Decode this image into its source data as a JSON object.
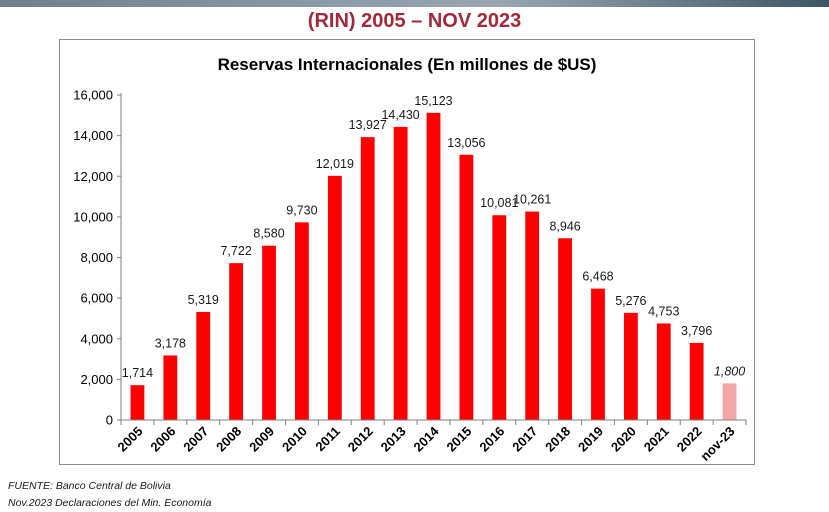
{
  "slide": {
    "title": "(RIN) 2005 – NOV 2023"
  },
  "footnotes": {
    "source": "FUENTE: Banco Central de Bolivia",
    "note": "Nov.2023 Declaraciones del Min. Economía"
  },
  "colors": {
    "title": "#a3293a",
    "bar": "#ff0000",
    "bar_estimate": "#f4a6a6"
  },
  "chart_data": {
    "type": "bar",
    "title": "Reservas Internacionales (En millones de $US)",
    "xlabel": "",
    "ylabel": "",
    "ylim": [
      0,
      16000
    ],
    "yticks": [
      0,
      2000,
      4000,
      6000,
      8000,
      10000,
      12000,
      14000,
      16000
    ],
    "ytick_labels": [
      "0",
      "2,000",
      "4,000",
      "6,000",
      "8,000",
      "10,000",
      "12,000",
      "14,000",
      "16,000"
    ],
    "grid": false,
    "legend": "none",
    "categories": [
      "2005",
      "2006",
      "2007",
      "2008",
      "2009",
      "2010",
      "2011",
      "2012",
      "2013",
      "2014",
      "2015",
      "2016",
      "2017",
      "2018",
      "2019",
      "2020",
      "2021",
      "2022",
      "nov-23"
    ],
    "values": [
      1714,
      3178,
      5319,
      7722,
      8580,
      9730,
      12019,
      13927,
      14430,
      15123,
      13056,
      10081,
      10261,
      8946,
      6468,
      5276,
      4753,
      3796,
      1800
    ],
    "value_labels": [
      "1,714",
      "3,178",
      "5,319",
      "7,722",
      "8,580",
      "9,730",
      "12,019",
      "13,927",
      "14,430",
      "15,123",
      "13,056",
      "10,081",
      "10,261",
      "8,946",
      "6,468",
      "5,276",
      "4,753",
      "3,796",
      "1,800"
    ],
    "estimated": [
      false,
      false,
      false,
      false,
      false,
      false,
      false,
      false,
      false,
      false,
      false,
      false,
      false,
      false,
      false,
      false,
      false,
      false,
      true
    ]
  }
}
